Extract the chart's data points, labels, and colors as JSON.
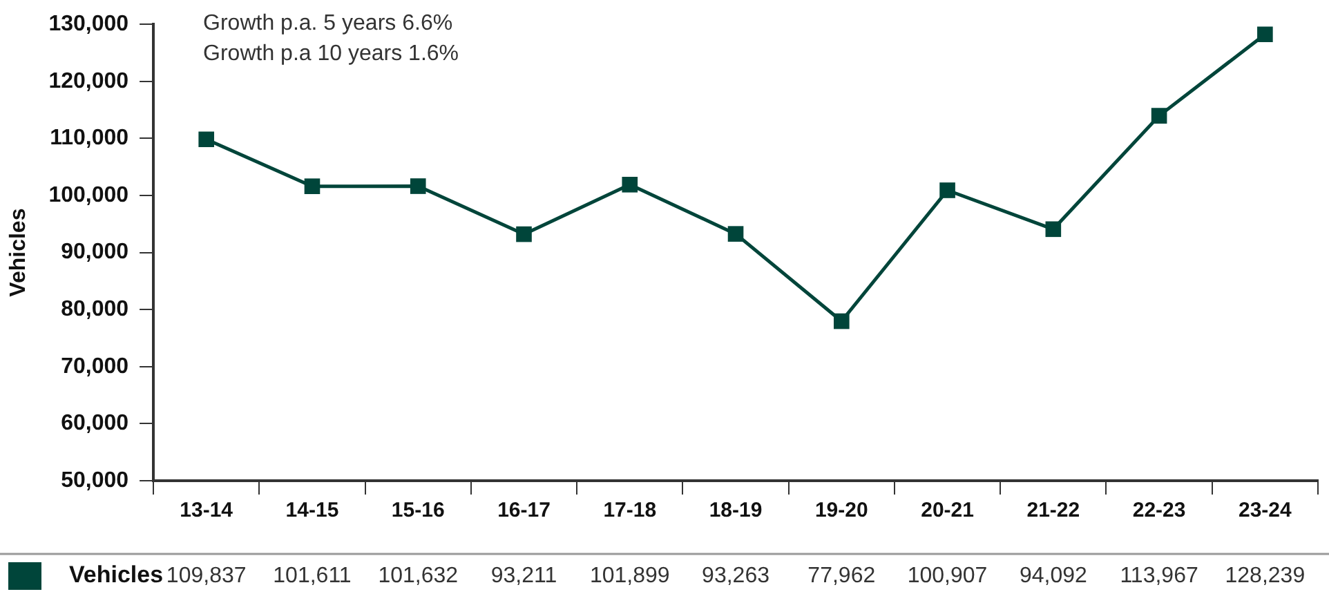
{
  "chart_data": {
    "type": "line",
    "ylabel": "Vehicles",
    "categories": [
      "13-14",
      "14-15",
      "15-16",
      "16-17",
      "17-18",
      "18-19",
      "19-20",
      "20-21",
      "21-22",
      "22-23",
      "23-24"
    ],
    "series": [
      {
        "name": "Vehicles",
        "color": "#00453a",
        "values": [
          109837,
          101611,
          101632,
          93211,
          101899,
          93263,
          77962,
          100907,
          94092,
          113967,
          128239
        ],
        "value_labels": [
          "109,837",
          "101,611",
          "101,632",
          "93,211",
          "101,899",
          "93,263",
          "77,962",
          "100,907",
          "94,092",
          "113,967",
          "128,239"
        ]
      }
    ],
    "ylim": [
      50000,
      130000
    ],
    "yticks": [
      {
        "value": 50000,
        "label": "50,000"
      },
      {
        "value": 60000,
        "label": "60,000"
      },
      {
        "value": 70000,
        "label": "70,000"
      },
      {
        "value": 80000,
        "label": "80,000"
      },
      {
        "value": 90000,
        "label": "90,000"
      },
      {
        "value": 100000,
        "label": "100,000"
      },
      {
        "value": 110000,
        "label": "110,000"
      },
      {
        "value": 120000,
        "label": "120,000"
      },
      {
        "value": 130000,
        "label": "130,000"
      }
    ],
    "annotations": [
      "Growth p.a. 5 years 6.6%",
      "Growth p.a 10 years 1.6%"
    ],
    "grid": false,
    "legend": "bottom",
    "marker": "square",
    "line_style": "solid"
  }
}
